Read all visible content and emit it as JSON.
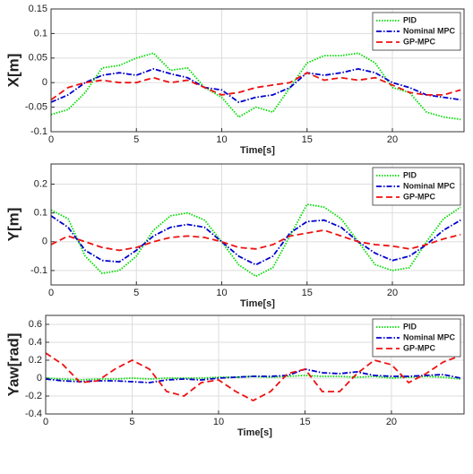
{
  "chart_data": [
    {
      "type": "line",
      "xlabel": "Time[s]",
      "ylabel": "X[m]",
      "x": [
        0,
        1,
        2,
        3,
        4,
        5,
        6,
        7,
        8,
        9,
        10,
        11,
        12,
        13,
        14,
        15,
        16,
        17,
        18,
        19,
        20,
        21,
        22,
        23,
        24
      ],
      "xlim": [
        0,
        24.2
      ],
      "xticks": [
        0,
        5,
        10,
        15,
        20
      ],
      "ylim": [
        -0.1,
        0.15
      ],
      "yticks": [
        -0.1,
        -0.05,
        0,
        0.05,
        0.1,
        0.15
      ],
      "grid": true,
      "legend": "upper right",
      "series": [
        {
          "name": "PID",
          "color": "#00dd00",
          "linestyle": "dotted",
          "values": [
            -0.065,
            -0.055,
            -0.02,
            0.03,
            0.035,
            0.05,
            0.06,
            0.025,
            0.03,
            -0.01,
            -0.03,
            -0.07,
            -0.05,
            -0.06,
            -0.01,
            0.04,
            0.055,
            0.055,
            0.06,
            0.04,
            -0.01,
            -0.02,
            -0.06,
            -0.07,
            -0.075
          ]
        },
        {
          "name": "Nominal MPC",
          "color": "#0000cc",
          "linestyle": "dashdot",
          "values": [
            -0.04,
            -0.025,
            0.0,
            0.015,
            0.02,
            0.015,
            0.028,
            0.018,
            0.01,
            -0.01,
            -0.015,
            -0.04,
            -0.03,
            -0.025,
            -0.01,
            0.02,
            0.015,
            0.02,
            0.028,
            0.02,
            0.0,
            -0.01,
            -0.025,
            -0.03,
            -0.035
          ]
        },
        {
          "name": "GP-MPC",
          "color": "#ee1111",
          "linestyle": "dashed",
          "values": [
            -0.035,
            -0.01,
            0.0,
            0.005,
            0.0,
            0.0,
            0.01,
            0.0,
            0.005,
            -0.01,
            -0.025,
            -0.02,
            -0.01,
            -0.005,
            0.0,
            0.02,
            0.005,
            0.01,
            0.005,
            0.01,
            -0.005,
            -0.02,
            -0.025,
            -0.025,
            -0.015
          ]
        }
      ]
    },
    {
      "type": "line",
      "xlabel": "Time[s]",
      "ylabel": "Y[m]",
      "x": [
        0,
        1,
        2,
        3,
        4,
        5,
        6,
        7,
        8,
        9,
        10,
        11,
        12,
        13,
        14,
        15,
        16,
        17,
        18,
        19,
        20,
        21,
        22,
        23,
        24
      ],
      "xlim": [
        0,
        24.2
      ],
      "xticks": [
        0,
        5,
        10,
        15,
        20
      ],
      "ylim": [
        -0.15,
        0.27
      ],
      "yticks": [
        -0.1,
        0,
        0.1,
        0.2
      ],
      "grid": true,
      "legend": "upper right",
      "series": [
        {
          "name": "PID",
          "color": "#00dd00",
          "linestyle": "dotted",
          "values": [
            0.11,
            0.08,
            -0.05,
            -0.11,
            -0.1,
            -0.05,
            0.04,
            0.09,
            0.1,
            0.075,
            0.0,
            -0.08,
            -0.12,
            -0.09,
            0.02,
            0.13,
            0.12,
            0.08,
            0.0,
            -0.08,
            -0.1,
            -0.09,
            0.0,
            0.08,
            0.12
          ]
        },
        {
          "name": "Nominal MPC",
          "color": "#0000cc",
          "linestyle": "dashdot",
          "values": [
            0.09,
            0.05,
            -0.03,
            -0.065,
            -0.07,
            -0.03,
            0.02,
            0.05,
            0.06,
            0.05,
            0.0,
            -0.05,
            -0.08,
            -0.05,
            0.03,
            0.07,
            0.075,
            0.05,
            0.0,
            -0.04,
            -0.065,
            -0.05,
            -0.01,
            0.04,
            0.075
          ]
        },
        {
          "name": "GP-MPC",
          "color": "#ee1111",
          "linestyle": "dashed",
          "values": [
            -0.01,
            0.02,
            0.0,
            -0.02,
            -0.03,
            -0.02,
            0.0,
            0.015,
            0.02,
            0.015,
            0.0,
            -0.02,
            -0.025,
            -0.01,
            0.02,
            0.03,
            0.04,
            0.02,
            0.0,
            -0.01,
            -0.015,
            -0.025,
            -0.01,
            0.01,
            0.025
          ]
        }
      ]
    },
    {
      "type": "line",
      "xlabel": "Time[s]",
      "ylabel": "Yaw[rad]",
      "x": [
        0,
        1,
        2,
        3,
        4,
        5,
        6,
        7,
        8,
        9,
        10,
        11,
        12,
        13,
        14,
        15,
        16,
        17,
        18,
        19,
        20,
        21,
        22,
        23,
        24
      ],
      "xlim": [
        0,
        24.2
      ],
      "xticks": [
        0,
        5,
        10,
        15,
        20
      ],
      "ylim": [
        -0.4,
        0.7
      ],
      "yticks": [
        -0.4,
        -0.2,
        0,
        0.2,
        0.4,
        0.6
      ],
      "grid": true,
      "legend": "upper right",
      "series": [
        {
          "name": "PID",
          "color": "#00dd00",
          "linestyle": "dotted",
          "values": [
            0.0,
            -0.01,
            -0.02,
            -0.01,
            -0.01,
            0.0,
            -0.01,
            0.0,
            0.0,
            0.0,
            0.01,
            0.01,
            0.02,
            0.01,
            0.02,
            0.03,
            0.02,
            0.02,
            0.01,
            0.02,
            0.0,
            0.01,
            0.02,
            0.01,
            -0.01
          ]
        },
        {
          "name": "Nominal MPC",
          "color": "#0000cc",
          "linestyle": "dashdot",
          "values": [
            -0.01,
            -0.03,
            -0.04,
            -0.03,
            -0.03,
            -0.04,
            -0.05,
            -0.02,
            -0.01,
            -0.02,
            0.0,
            0.01,
            0.02,
            0.02,
            0.03,
            0.1,
            0.06,
            0.05,
            0.07,
            0.03,
            0.02,
            0.02,
            0.03,
            0.04,
            0.0
          ]
        },
        {
          "name": "GP-MPC",
          "color": "#ee1111",
          "linestyle": "dashed",
          "values": [
            0.28,
            0.15,
            -0.05,
            -0.03,
            0.1,
            0.2,
            0.1,
            -0.15,
            -0.2,
            -0.05,
            -0.02,
            -0.15,
            -0.25,
            -0.15,
            0.05,
            0.1,
            -0.15,
            -0.15,
            0.05,
            0.2,
            0.15,
            -0.05,
            0.05,
            0.18,
            0.25
          ]
        }
      ]
    }
  ]
}
